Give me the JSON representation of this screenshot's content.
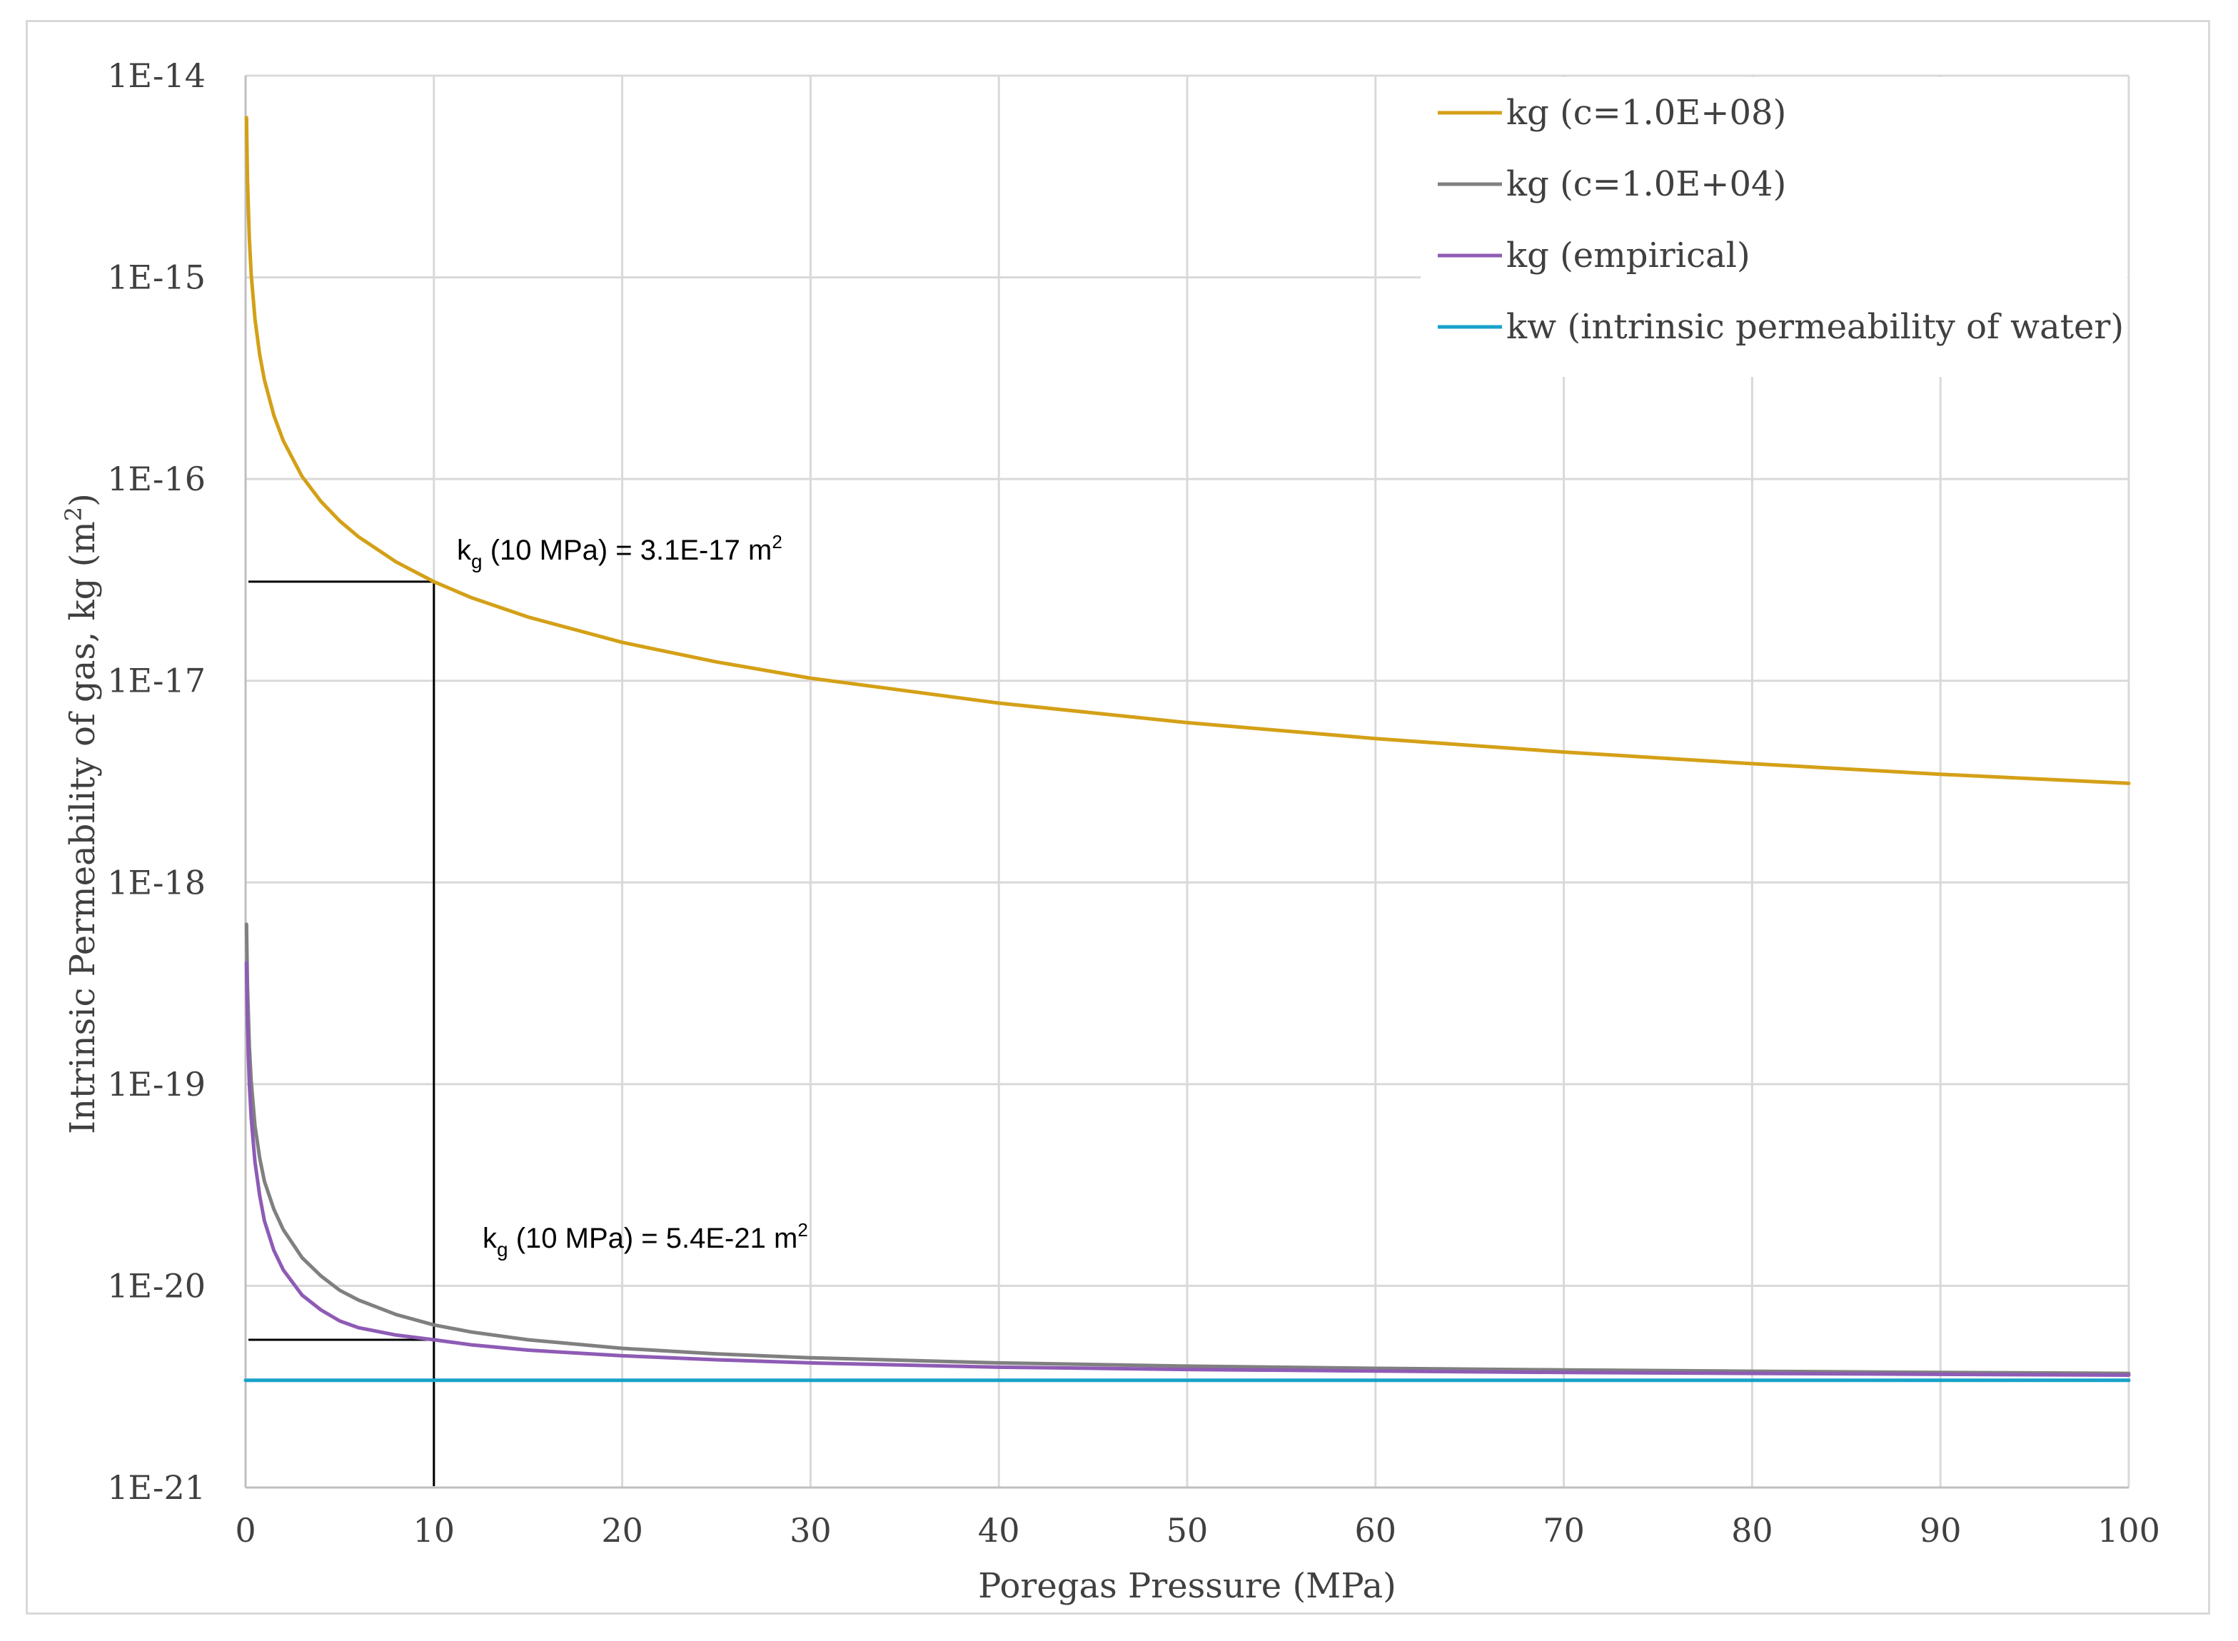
{
  "chart_data": {
    "type": "line",
    "title": "",
    "xlabel": "Poregas Pressure (MPa)",
    "ylabel": "Intrinsic Permeability of gas, kg (m",
    "ylabel_sup": "2",
    "ylabel_close": ")",
    "xlim": [
      0,
      100
    ],
    "ylim": [
      1e-21,
      1e-14
    ],
    "yscale": "log",
    "grid": true,
    "legend_position": "top-right",
    "x_ticks": [
      0,
      10,
      20,
      30,
      40,
      50,
      60,
      70,
      80,
      90,
      100
    ],
    "x_tick_labels": [
      "0",
      "10",
      "20",
      "30",
      "40",
      "50",
      "60",
      "70",
      "80",
      "90",
      "100"
    ],
    "y_ticks": [
      1e-14,
      1e-15,
      1e-16,
      1e-17,
      1e-18,
      1e-19,
      1e-20,
      1e-21
    ],
    "y_tick_labels": [
      "1E-14",
      "1E-15",
      "1E-16",
      "1E-17",
      "1E-18",
      "1E-19",
      "1E-20",
      "1E-21"
    ],
    "series": [
      {
        "name": "kg (c=1.0E+08)",
        "color": "#D4A017",
        "x": [
          0.05,
          0.1,
          0.2,
          0.3,
          0.5,
          0.75,
          1,
          1.5,
          2,
          3,
          4,
          5,
          6,
          8,
          10,
          12,
          15,
          20,
          25,
          30,
          40,
          50,
          60,
          70,
          80,
          90,
          100
        ],
        "values": [
          6.2e-15,
          3.1e-15,
          1.55e-15,
          1.03e-15,
          6.2e-16,
          4.13e-16,
          3.1e-16,
          2.07e-16,
          1.55e-16,
          1.03e-16,
          7.75e-17,
          6.2e-17,
          5.17e-17,
          3.88e-17,
          3.1e-17,
          2.58e-17,
          2.07e-17,
          1.55e-17,
          1.24e-17,
          1.03e-17,
          7.75e-18,
          6.2e-18,
          5.17e-18,
          4.43e-18,
          3.88e-18,
          3.44e-18,
          3.1e-18
        ]
      },
      {
        "name": "kg (c=1.0E+04)",
        "color": "#808080",
        "x": [
          0.05,
          0.1,
          0.2,
          0.3,
          0.5,
          0.75,
          1,
          1.5,
          2,
          3,
          4,
          5,
          6,
          8,
          10,
          12,
          15,
          20,
          25,
          30,
          40,
          50,
          60,
          70,
          80,
          90,
          100
        ],
        "values": [
          6.2e-19,
          3.1e-19,
          1.53e-19,
          1.03e-19,
          6.2e-20,
          4.3e-20,
          3.3e-20,
          2.4e-20,
          1.9e-20,
          1.38e-20,
          1.12e-20,
          9.5e-21,
          8.5e-21,
          7.2e-21,
          6.4e-21,
          5.9e-21,
          5.4e-21,
          4.9e-21,
          4.6e-21,
          4.4e-21,
          4.15e-21,
          4e-21,
          3.9e-21,
          3.83e-21,
          3.77e-21,
          3.72e-21,
          3.68e-21
        ]
      },
      {
        "name": "kg (empirical)",
        "color": "#8E5BB5",
        "x": [
          0.05,
          0.1,
          0.2,
          0.3,
          0.5,
          0.75,
          1,
          1.5,
          2,
          3,
          4,
          5,
          6,
          8,
          10,
          12,
          15,
          20,
          25,
          30,
          40,
          50,
          60,
          70,
          80,
          90,
          100
        ],
        "values": [
          4e-19,
          2e-19,
          1e-19,
          6.8e-20,
          4.1e-20,
          2.8e-20,
          2.1e-20,
          1.5e-20,
          1.2e-20,
          9e-21,
          7.6e-21,
          6.7e-21,
          6.2e-21,
          5.7e-21,
          5.4e-21,
          5.1e-21,
          4.8e-21,
          4.5e-21,
          4.3e-21,
          4.15e-21,
          3.95e-21,
          3.85e-21,
          3.78e-21,
          3.72e-21,
          3.68e-21,
          3.64e-21,
          3.61e-21
        ]
      },
      {
        "name": "kw (intrinsic permeability of water)",
        "color": "#17A2C8",
        "x": [
          0,
          100
        ],
        "values": [
          3.4e-21,
          3.4e-21
        ]
      }
    ],
    "annotations": [
      {
        "base": "k",
        "sub": "g",
        "text": " (10 MPa) = 3.1E-17 m",
        "sup": "2",
        "point_x": 10,
        "point_y": 3.1e-17
      },
      {
        "base": "k",
        "sub": "g",
        "text": " (10 MPa) = 5.4E-21 m",
        "sup": "2",
        "point_x": 10,
        "point_y": 5.4e-21
      }
    ],
    "colors": {
      "grid": "#d9d9d9",
      "axis": "#bfbfbf",
      "guide": "#000000"
    }
  }
}
